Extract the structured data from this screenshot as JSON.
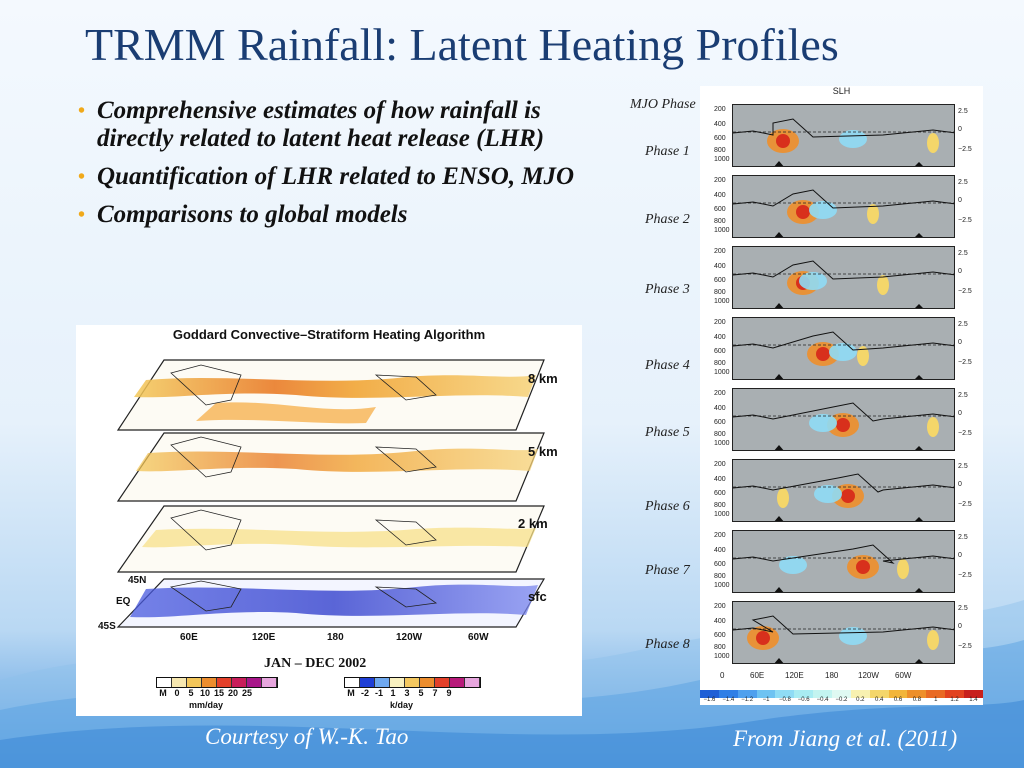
{
  "slide": {
    "title": "TRMM Rainfall: Latent Heating Profiles",
    "bullets": [
      "Comprehensive estimates of how rainfall is directly related to latent heat release (LHR)",
      "Quantification of LHR related to ENSO, MJO",
      "Comparisons to global models"
    ],
    "credit_left": "Courtesy of W.-K. Tao",
    "credit_right": "From Jiang et al. (2011)",
    "accent_color": "#f0a91a",
    "title_color": "#1a3d73"
  },
  "goddard_figure": {
    "title": "Goddard Convective–Stratiform Heating Algorithm",
    "levels": [
      "8 km",
      "5 km",
      "2 km",
      "sfc"
    ],
    "lat_labels": [
      "45N",
      "EQ",
      "45S"
    ],
    "lon_labels": [
      "60E",
      "120E",
      "180",
      "120W",
      "60W"
    ],
    "period": "JAN – DEC  2002",
    "rain_ticks": [
      "M",
      "0",
      "5",
      "10",
      "15",
      "20",
      "25"
    ],
    "rain_unit": "mm/day",
    "heat_ticks": [
      "M",
      "-2",
      "-1",
      "1",
      "3",
      "5",
      "7",
      "9"
    ],
    "heat_unit": "k/day"
  },
  "slh_figure": {
    "title": "SLH",
    "header": "MJO Phase",
    "phases": [
      "Phase 1",
      "Phase 2",
      "Phase 3",
      "Phase 4",
      "Phase 5",
      "Phase 6",
      "Phase 7",
      "Phase 8"
    ],
    "pressure_ticks": [
      "200",
      "400",
      "600",
      "800",
      "1000"
    ],
    "right_ticks": [
      "2.5",
      "0",
      "−2.5"
    ],
    "lon_ticks": [
      "0",
      "60E",
      "120E",
      "180",
      "120W",
      "60W"
    ],
    "colorbar_ticks": [
      "−1.6",
      "−1.4",
      "−1.2",
      "−1",
      "−0.8",
      "−0.6",
      "−0.4",
      "−0.2",
      "0.2",
      "0.4",
      "0.6",
      "0.8",
      "1",
      "1.2",
      "1.4"
    ]
  }
}
